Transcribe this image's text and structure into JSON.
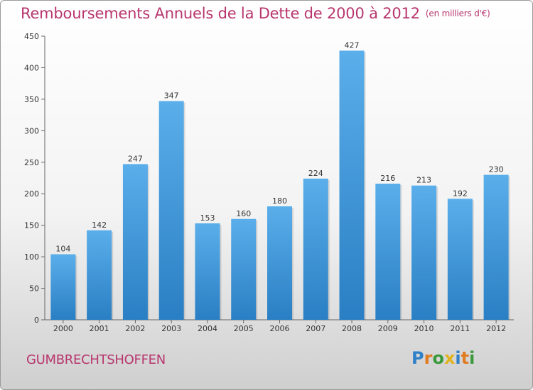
{
  "title": "Remboursements Annuels de la Dette de 2000 à 2012",
  "subtitle": "(en milliers d'€)",
  "commune": "GUMBRECHTSHOFFEN",
  "logo": {
    "text": "Proxiti",
    "letters": [
      {
        "char": "P",
        "color": "#2f7fc9"
      },
      {
        "char": "r",
        "color": "#e07b1f"
      },
      {
        "char": "o",
        "color": "#3a9a3a"
      },
      {
        "char": "x",
        "color": "#e2b21a"
      },
      {
        "char": "i",
        "color": "#2f7fc9"
      },
      {
        "char": "t",
        "color": "#e07b1f"
      },
      {
        "char": "i",
        "color": "#3a9a3a"
      }
    ]
  },
  "colors": {
    "bar_light": "#5aaeea",
    "bar_dark": "#2a7fc4",
    "title": "#b8366e"
  },
  "chart_data": {
    "type": "bar",
    "categories": [
      "2000",
      "2001",
      "2002",
      "2003",
      "2004",
      "2005",
      "2006",
      "2007",
      "2008",
      "2009",
      "2010",
      "2011",
      "2012"
    ],
    "values": [
      104,
      142,
      247,
      347,
      153,
      160,
      180,
      224,
      427,
      216,
      213,
      192,
      230
    ],
    "title": "Remboursements Annuels de la Dette de 2000 à 2012",
    "subtitle": "(en milliers d'€)",
    "ylim": [
      0,
      450
    ],
    "yticks": [
      0,
      50,
      100,
      150,
      200,
      250,
      300,
      350,
      400,
      450
    ],
    "grid": false,
    "legend": "none"
  }
}
